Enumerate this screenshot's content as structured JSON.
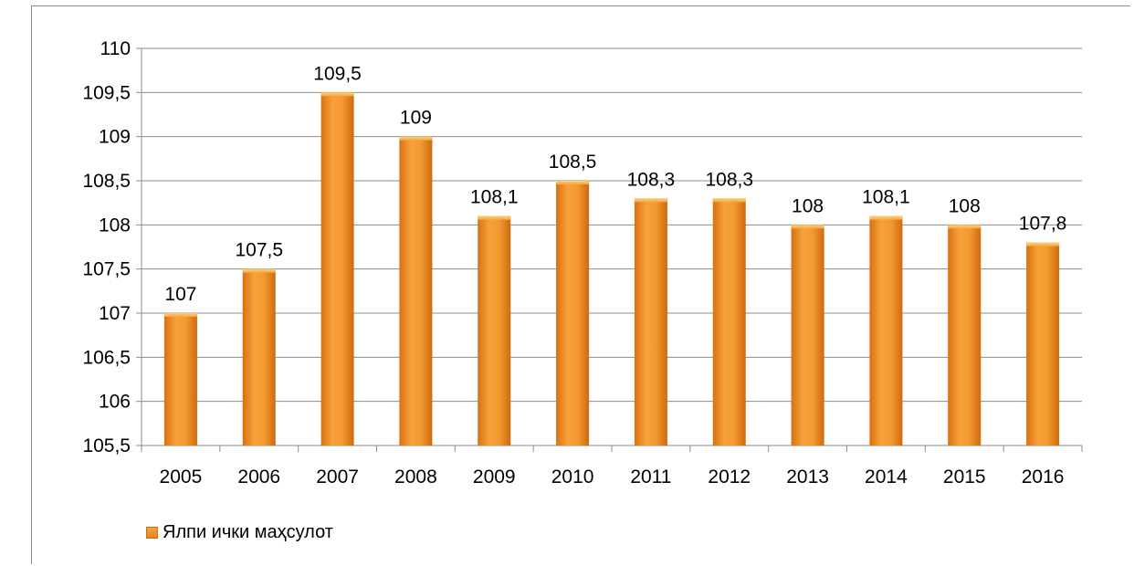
{
  "chart_data": {
    "type": "bar",
    "categories": [
      "2005",
      "2006",
      "2007",
      "2008",
      "2009",
      "2010",
      "2011",
      "2012",
      "2013",
      "2014",
      "2015",
      "2016"
    ],
    "series": [
      {
        "name": "Ялпи ички маҳсулот",
        "values": [
          107,
          107.5,
          109.5,
          109,
          108.1,
          108.5,
          108.3,
          108.3,
          108,
          108.1,
          108,
          107.8
        ],
        "value_labels": [
          "107",
          "107,5",
          "109,5",
          "109",
          "108,1",
          "108,5",
          "108,3",
          "108,3",
          "108",
          "108,1",
          "108",
          "107,8"
        ],
        "color": "#f0932b"
      }
    ],
    "yticks": [
      {
        "value": 105.5,
        "label": "105,5"
      },
      {
        "value": 106,
        "label": "106"
      },
      {
        "value": 106.5,
        "label": "106,5"
      },
      {
        "value": 107,
        "label": "107"
      },
      {
        "value": 107.5,
        "label": "107,5"
      },
      {
        "value": 108,
        "label": "108"
      },
      {
        "value": 108.5,
        "label": "108,5"
      },
      {
        "value": 109,
        "label": "109"
      },
      {
        "value": 109.5,
        "label": "109,5"
      },
      {
        "value": 110,
        "label": "110"
      }
    ],
    "ylim": [
      105.5,
      110
    ],
    "title": "",
    "xlabel": "",
    "ylabel": "",
    "grid": true,
    "legend_position": "bottom-left"
  }
}
